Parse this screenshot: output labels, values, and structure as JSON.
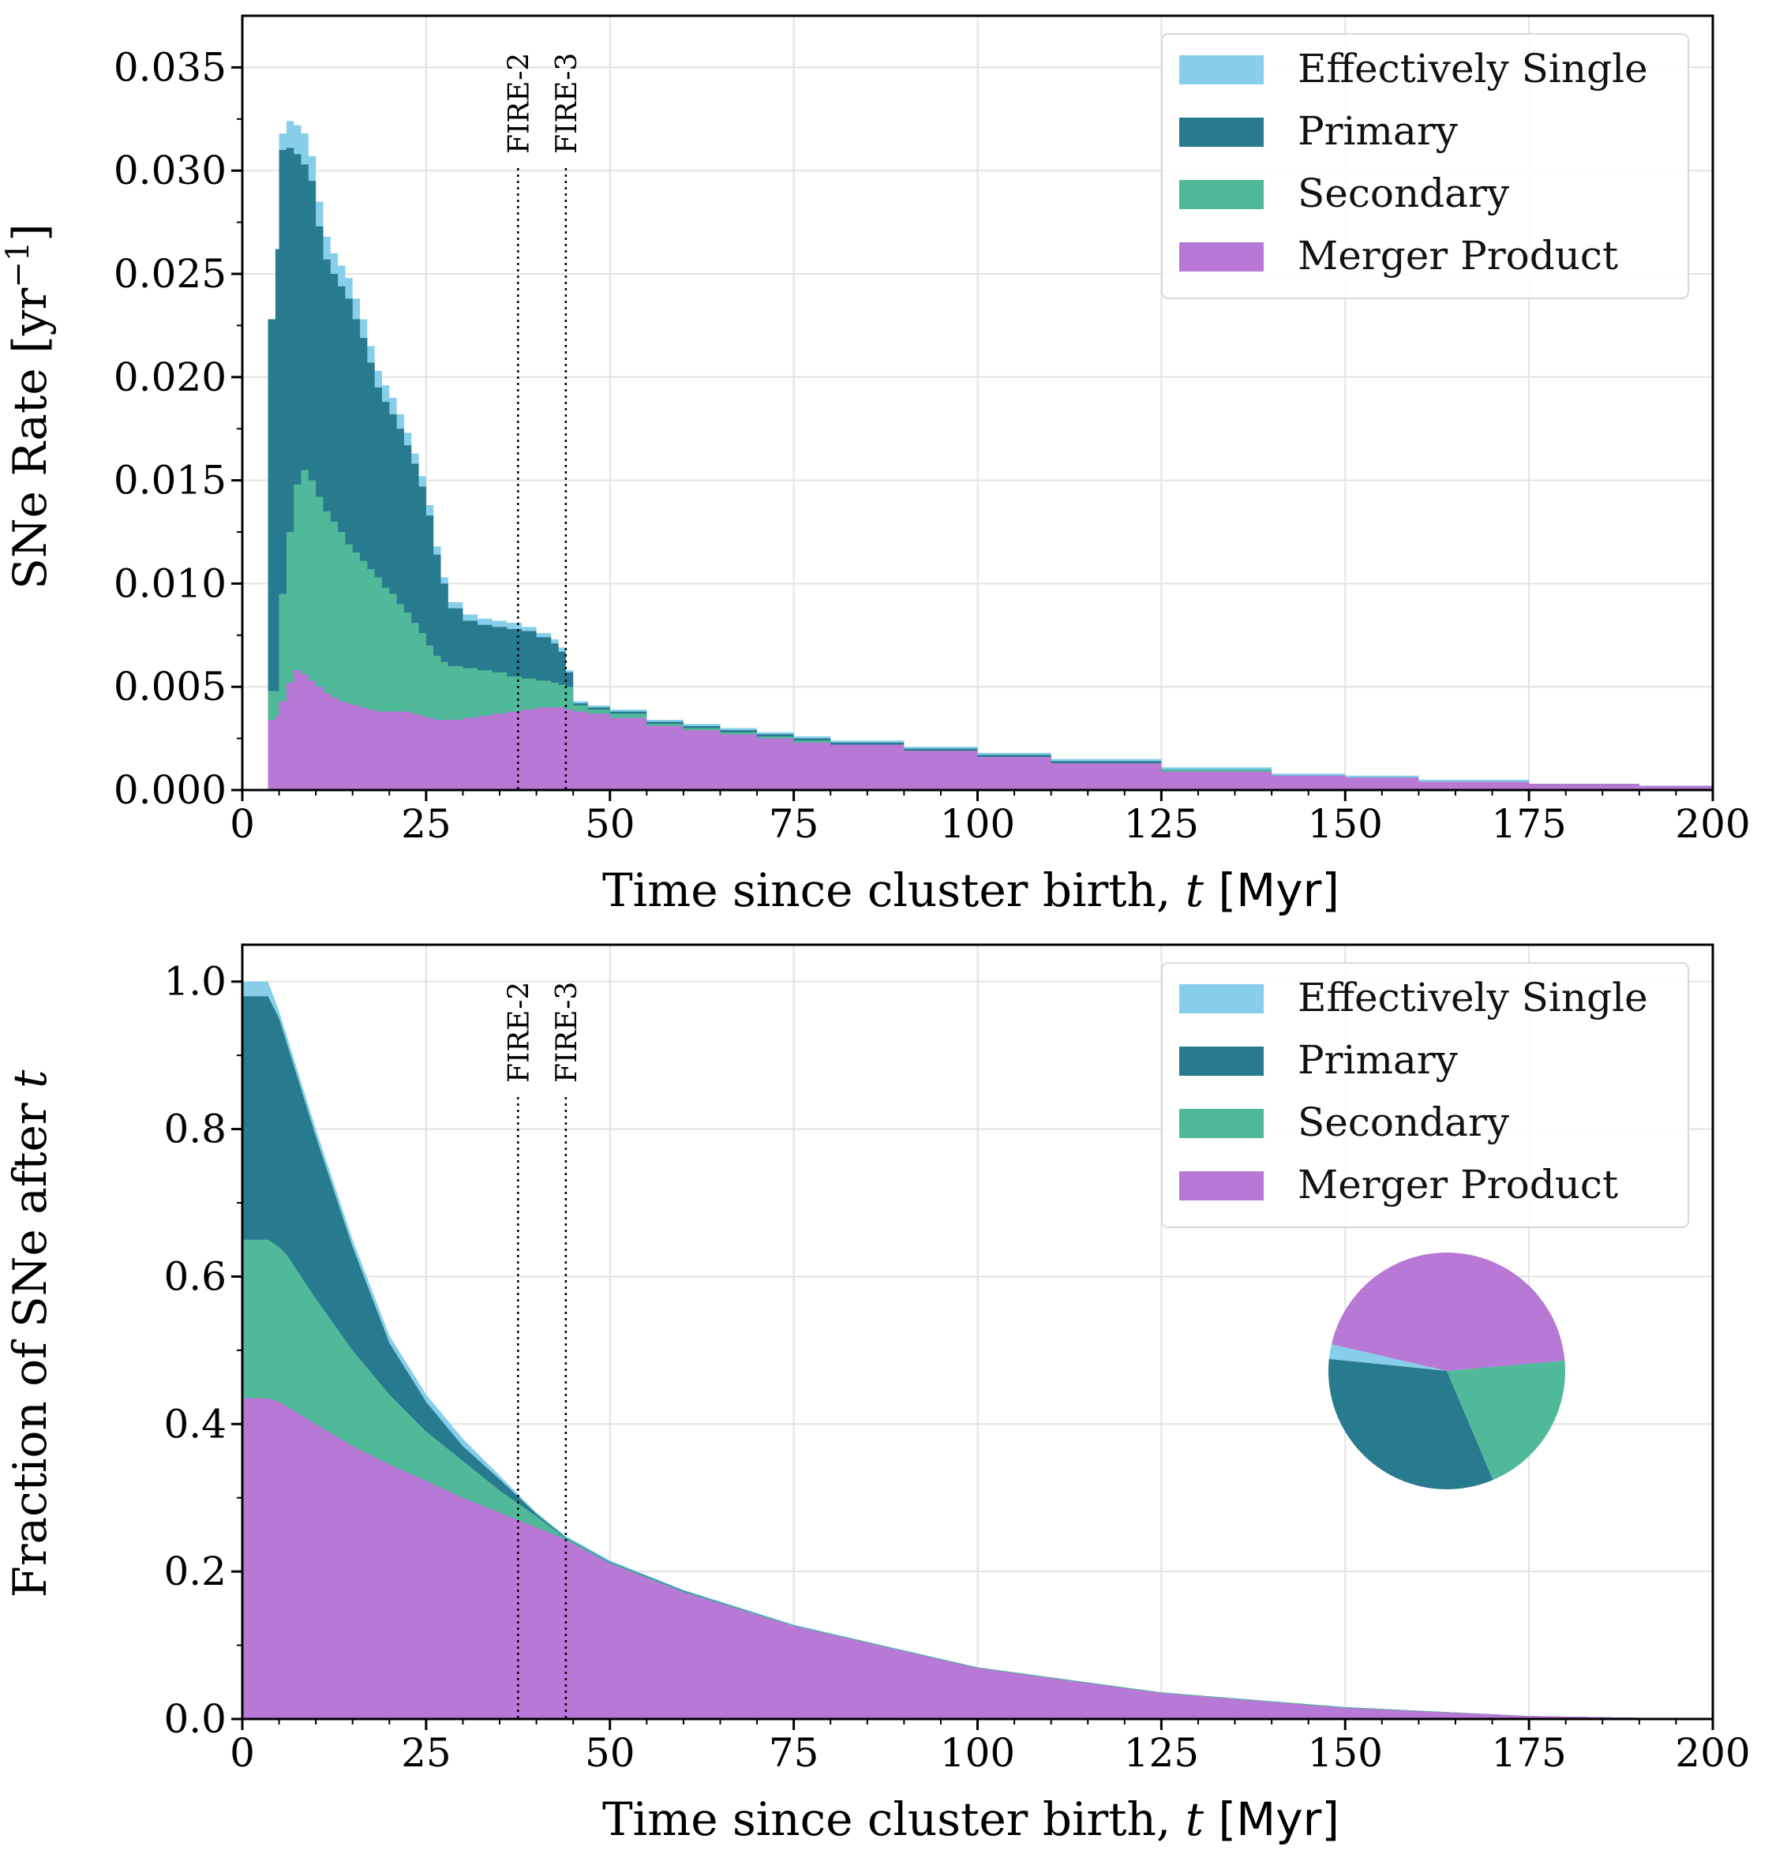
{
  "colors": {
    "effectively_single": "#87ceeb",
    "primary": "#287a8e",
    "secondary": "#4fb99a",
    "merger_product": "#b878d6",
    "grid": "#e3e3e3"
  },
  "chart_data": [
    {
      "type": "area",
      "subtype": "step-histogram-stacked",
      "ylabel_text": "SNe Rate [yr",
      "ylabel_exp": "−1",
      "ylabel_close": "]",
      "xlabel_text": "Time since cluster birth, ",
      "xlabel_var": "t",
      "xlabel_unit": " [Myr]",
      "xlim": [
        0,
        200
      ],
      "ylim": [
        0,
        0.0375
      ],
      "xticks": [
        0,
        25,
        50,
        75,
        100,
        125,
        150,
        175,
        200
      ],
      "xtick_labels": [
        "0",
        "25",
        "50",
        "75",
        "100",
        "125",
        "150",
        "175",
        "200"
      ],
      "yticks": [
        0,
        0.005,
        0.01,
        0.015,
        0.02,
        0.025,
        0.03,
        0.035
      ],
      "ytick_labels": [
        "0.000",
        "0.005",
        "0.010",
        "0.015",
        "0.020",
        "0.025",
        "0.030",
        "0.035"
      ],
      "grid": true,
      "legend": "top-right",
      "vlines": [
        {
          "x": 37.5,
          "label": "FIRE-2"
        },
        {
          "x": 44,
          "label": "FIRE-3"
        }
      ],
      "series": [
        {
          "name": "Effectively Single",
          "x": [
            3.5,
            4.5,
            5,
            6,
            7,
            8,
            9,
            10,
            11,
            12,
            13,
            14,
            15,
            16,
            17,
            18,
            19,
            20,
            21,
            22,
            23,
            24,
            25,
            26,
            27,
            28,
            30,
            32,
            34,
            36,
            38,
            40,
            42,
            43,
            44,
            45,
            47,
            50,
            55,
            60,
            65,
            70,
            75,
            80,
            90,
            100,
            110,
            125,
            140,
            150,
            160,
            175,
            190,
            200
          ],
          "top": [
            0.0228,
            0.0262,
            0.0318,
            0.0324,
            0.0322,
            0.0318,
            0.0307,
            0.0285,
            0.0268,
            0.026,
            0.0254,
            0.0248,
            0.0238,
            0.0228,
            0.0215,
            0.0203,
            0.0196,
            0.019,
            0.0182,
            0.0173,
            0.0163,
            0.0152,
            0.0138,
            0.0118,
            0.0103,
            0.0091,
            0.0085,
            0.0083,
            0.0082,
            0.0081,
            0.0079,
            0.0076,
            0.0073,
            0.0069,
            0.0058,
            0.0043,
            0.0041,
            0.0039,
            0.0034,
            0.0032,
            0.003,
            0.0028,
            0.0026,
            0.0024,
            0.0021,
            0.0018,
            0.0015,
            0.0011,
            0.0008,
            0.0007,
            0.0005,
            0.0003,
            0.0002,
            0.0001
          ]
        },
        {
          "name": "Primary",
          "x": [
            3.5,
            4.5,
            5,
            6,
            7,
            8,
            9,
            10,
            11,
            12,
            13,
            14,
            15,
            16,
            17,
            18,
            19,
            20,
            21,
            22,
            23,
            24,
            25,
            26,
            27,
            28,
            30,
            32,
            34,
            36,
            38,
            40,
            42,
            43,
            44,
            45,
            47,
            50,
            55,
            60,
            65,
            70,
            75,
            80,
            90,
            100,
            110,
            125,
            140,
            150,
            160,
            175,
            190,
            200
          ],
          "top": [
            0.0228,
            0.0262,
            0.031,
            0.0311,
            0.0308,
            0.0303,
            0.0295,
            0.0273,
            0.0257,
            0.025,
            0.0244,
            0.0238,
            0.0228,
            0.0219,
            0.0207,
            0.0195,
            0.0188,
            0.0182,
            0.0175,
            0.0167,
            0.0158,
            0.0147,
            0.0133,
            0.0114,
            0.01,
            0.0088,
            0.0082,
            0.008,
            0.0079,
            0.0078,
            0.0077,
            0.0074,
            0.0071,
            0.0067,
            0.0057,
            0.0042,
            0.004,
            0.0038,
            0.0033,
            0.0031,
            0.0029,
            0.0027,
            0.0025,
            0.0023,
            0.002,
            0.0017,
            0.0014,
            0.001,
            0.0007,
            0.0006,
            0.0004,
            0.0003,
            0.0002,
            0.0001
          ]
        },
        {
          "name": "Secondary",
          "x": [
            3.5,
            4.5,
            5,
            6,
            7,
            8,
            9,
            10,
            11,
            12,
            13,
            14,
            15,
            16,
            17,
            18,
            19,
            20,
            21,
            22,
            23,
            24,
            25,
            26,
            27,
            28,
            30,
            32,
            34,
            36,
            38,
            40,
            42,
            43,
            44,
            45,
            47,
            50,
            55,
            60,
            65,
            70,
            75,
            80,
            90,
            100,
            110,
            125,
            140,
            150,
            160,
            175,
            190,
            200
          ],
          "top": [
            0.0048,
            0.0048,
            0.0095,
            0.0125,
            0.0148,
            0.0155,
            0.015,
            0.0142,
            0.0135,
            0.013,
            0.0125,
            0.0119,
            0.0115,
            0.0111,
            0.0107,
            0.0103,
            0.0098,
            0.0095,
            0.009,
            0.0086,
            0.0081,
            0.0076,
            0.007,
            0.0065,
            0.0062,
            0.006,
            0.0059,
            0.0058,
            0.0057,
            0.0055,
            0.0054,
            0.0053,
            0.0052,
            0.0051,
            0.005,
            0.0041,
            0.0039,
            0.0037,
            0.0032,
            0.003,
            0.0028,
            0.0026,
            0.0024,
            0.0022,
            0.0019,
            0.0016,
            0.0013,
            0.001,
            0.0007,
            0.0006,
            0.0004,
            0.0003,
            0.0002,
            0.0001
          ]
        },
        {
          "name": "Merger Product",
          "x": [
            3.5,
            4.5,
            5,
            6,
            7,
            8,
            9,
            10,
            11,
            12,
            13,
            14,
            15,
            16,
            17,
            18,
            19,
            20,
            21,
            22,
            23,
            24,
            25,
            26,
            27,
            28,
            30,
            32,
            34,
            36,
            38,
            40,
            42,
            43,
            44,
            45,
            47,
            50,
            55,
            60,
            65,
            70,
            75,
            80,
            90,
            100,
            110,
            125,
            140,
            150,
            160,
            175,
            190,
            200
          ],
          "top": [
            0.0034,
            0.0036,
            0.0043,
            0.0052,
            0.0058,
            0.0056,
            0.0053,
            0.005,
            0.0047,
            0.0045,
            0.0043,
            0.0042,
            0.0041,
            0.004,
            0.0039,
            0.0038,
            0.0038,
            0.0038,
            0.0038,
            0.0038,
            0.0037,
            0.0036,
            0.0035,
            0.0034,
            0.0034,
            0.0034,
            0.0035,
            0.0036,
            0.0037,
            0.0038,
            0.0039,
            0.004,
            0.004,
            0.004,
            0.0039,
            0.0038,
            0.0037,
            0.0035,
            0.0031,
            0.0029,
            0.0027,
            0.0025,
            0.0023,
            0.0022,
            0.0019,
            0.0016,
            0.0013,
            0.0009,
            0.0007,
            0.0006,
            0.0004,
            0.0003,
            0.0002,
            0.0001
          ]
        }
      ]
    },
    {
      "type": "area",
      "subtype": "stacked-cumulative",
      "ylabel_text": "Fraction of SNe after ",
      "ylabel_var": "t",
      "xlabel_text": "Time since cluster birth, ",
      "xlabel_var": "t",
      "xlabel_unit": " [Myr]",
      "xlim": [
        0,
        200
      ],
      "ylim": [
        0,
        1.05
      ],
      "xticks": [
        0,
        25,
        50,
        75,
        100,
        125,
        150,
        175,
        200
      ],
      "xtick_labels": [
        "0",
        "25",
        "50",
        "75",
        "100",
        "125",
        "150",
        "175",
        "200"
      ],
      "yticks": [
        0,
        0.2,
        0.4,
        0.6,
        0.8,
        1.0
      ],
      "ytick_labels": [
        "0.0",
        "0.2",
        "0.4",
        "0.6",
        "0.8",
        "1.0"
      ],
      "grid": true,
      "legend": "top-right",
      "vlines": [
        {
          "x": 37.5,
          "label": "FIRE-2"
        },
        {
          "x": 44,
          "label": "FIRE-3"
        }
      ],
      "series": [
        {
          "name": "Effectively Single",
          "x": [
            0,
            3.5,
            5,
            10,
            15,
            20,
            25,
            30,
            35,
            40,
            44,
            50,
            60,
            75,
            100,
            125,
            150,
            175,
            200
          ],
          "top": [
            1.0,
            1.0,
            0.96,
            0.8,
            0.65,
            0.52,
            0.44,
            0.38,
            0.33,
            0.28,
            0.248,
            0.215,
            0.175,
            0.128,
            0.07,
            0.036,
            0.016,
            0.004,
            0.0
          ]
        },
        {
          "name": "Primary",
          "x": [
            0,
            3.5,
            5,
            10,
            15,
            20,
            25,
            30,
            35,
            40,
            44,
            50,
            60,
            75,
            100,
            125,
            150,
            175,
            200
          ],
          "top": [
            0.98,
            0.98,
            0.95,
            0.79,
            0.64,
            0.51,
            0.43,
            0.37,
            0.325,
            0.278,
            0.246,
            0.213,
            0.174,
            0.127,
            0.07,
            0.036,
            0.016,
            0.004,
            0.0
          ]
        },
        {
          "name": "Secondary",
          "x": [
            0,
            3.5,
            5,
            6,
            10,
            15,
            20,
            25,
            30,
            35,
            40,
            44,
            50,
            60,
            75,
            100,
            125,
            150,
            175,
            200
          ],
          "top": [
            0.65,
            0.65,
            0.64,
            0.63,
            0.57,
            0.5,
            0.44,
            0.39,
            0.35,
            0.31,
            0.275,
            0.245,
            0.212,
            0.173,
            0.127,
            0.07,
            0.036,
            0.016,
            0.004,
            0.0
          ]
        },
        {
          "name": "Merger Product",
          "x": [
            0,
            3.5,
            5,
            10,
            15,
            20,
            25,
            30,
            35,
            40,
            44,
            50,
            60,
            75,
            100,
            125,
            150,
            175,
            200
          ],
          "top": [
            0.435,
            0.435,
            0.43,
            0.4,
            0.37,
            0.345,
            0.323,
            0.3,
            0.28,
            0.26,
            0.243,
            0.211,
            0.172,
            0.126,
            0.069,
            0.035,
            0.015,
            0.004,
            0.0
          ]
        }
      ],
      "inset": {
        "type": "pie",
        "labels": [
          "Merger Product",
          "Effectively Single",
          "Primary",
          "Secondary"
        ],
        "values": [
          0.45,
          0.02,
          0.33,
          0.2
        ]
      }
    }
  ],
  "legend_items": [
    "Effectively Single",
    "Primary",
    "Secondary",
    "Merger Product"
  ]
}
